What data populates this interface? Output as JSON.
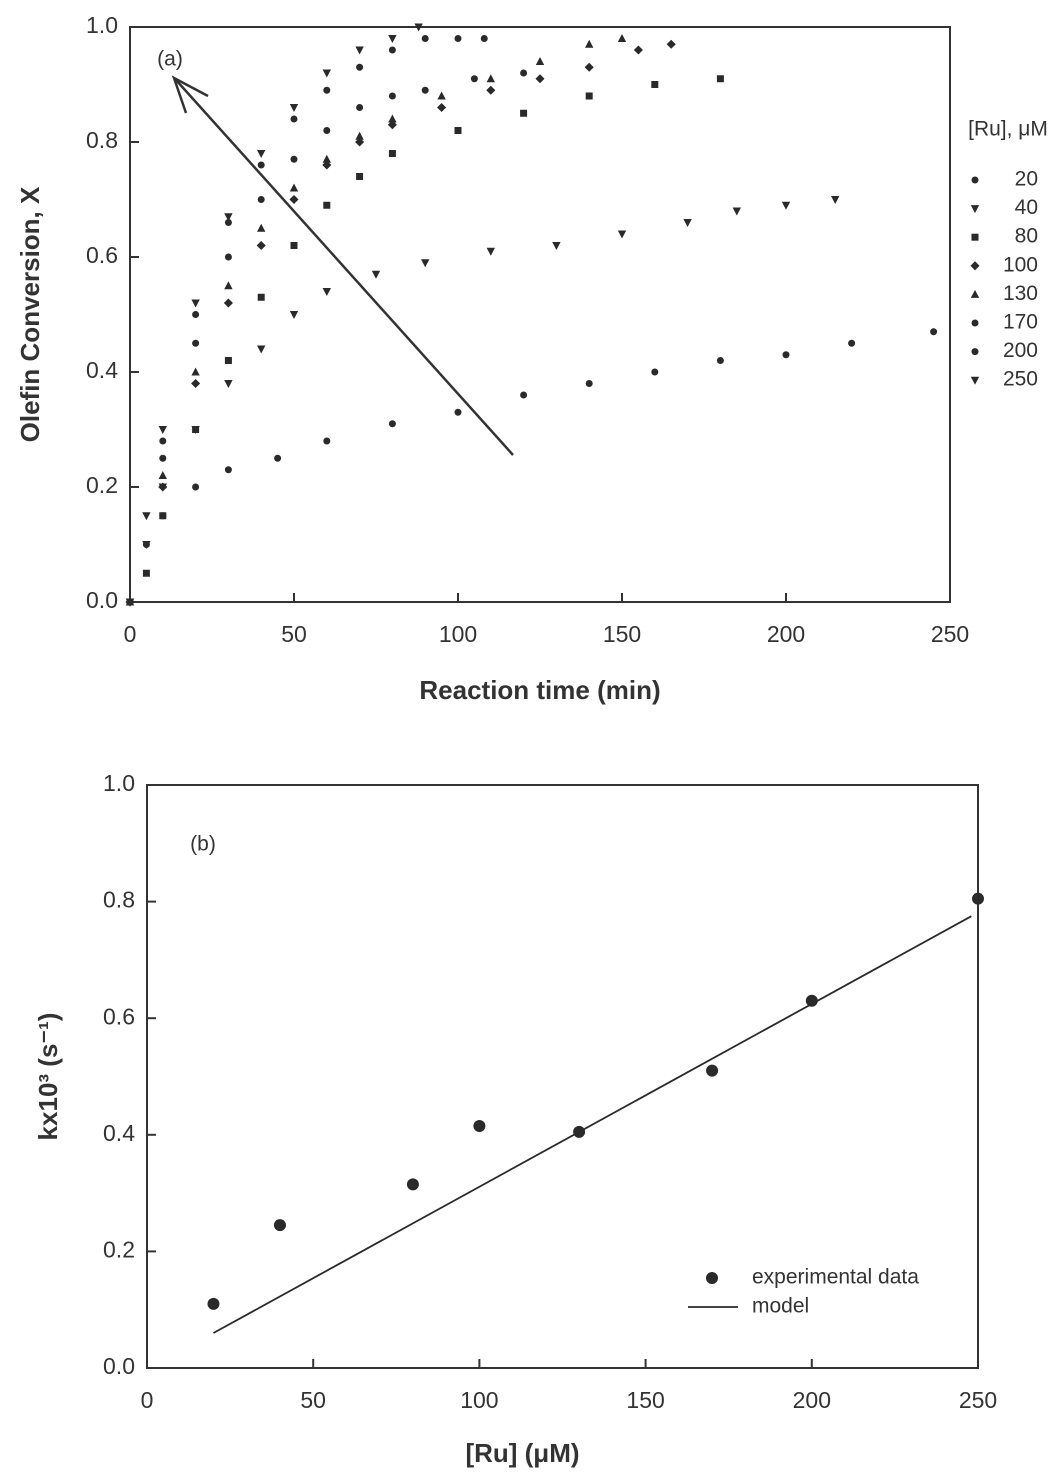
{
  "chart_data": [
    {
      "type": "scatter",
      "annotation": "(a)",
      "x_label": "Reaction time (min)",
      "y_label": "Olefin Conversion, X",
      "legend_title": "[Ru], μM",
      "legend": "right",
      "xlim": [
        0,
        250
      ],
      "ylim": [
        0,
        1.0
      ],
      "xticks": [
        0,
        50,
        100,
        150,
        200,
        250
      ],
      "yticks": [
        {
          "value": 0,
          "label": "0.0"
        },
        {
          "value": 0.2,
          "label": "0.2"
        },
        {
          "value": 0.4,
          "label": "0.4"
        },
        {
          "value": 0.6,
          "label": "0.6"
        },
        {
          "value": 0.8,
          "label": "0.8"
        },
        {
          "value": 1.0,
          "label": "1.0"
        }
      ],
      "series": [
        {
          "name": "20",
          "color": "#2a2a2a",
          "marker": "circle",
          "x": [
            0,
            5,
            10,
            20,
            30,
            45,
            60,
            80,
            100,
            120,
            140,
            160,
            180,
            200,
            220,
            245
          ],
          "values": [
            0,
            0.1,
            0.15,
            0.2,
            0.23,
            0.25,
            0.28,
            0.31,
            0.33,
            0.36,
            0.38,
            0.4,
            0.42,
            0.43,
            0.45,
            0.47
          ]
        },
        {
          "name": "40",
          "color": "#2a2a2a",
          "marker": "triangle-down",
          "x": [
            0,
            5,
            10,
            20,
            30,
            40,
            50,
            60,
            75,
            90,
            110,
            130,
            150,
            170,
            185,
            200,
            215
          ],
          "values": [
            0,
            0.1,
            0.2,
            0.3,
            0.38,
            0.44,
            0.5,
            0.54,
            0.57,
            0.59,
            0.61,
            0.62,
            0.64,
            0.66,
            0.68,
            0.69,
            0.7
          ]
        },
        {
          "name": "80",
          "color": "#2a2a2a",
          "marker": "square",
          "x": [
            0,
            5,
            10,
            20,
            30,
            40,
            50,
            60,
            70,
            80,
            100,
            120,
            140,
            160,
            180
          ],
          "values": [
            0,
            0.05,
            0.15,
            0.3,
            0.42,
            0.53,
            0.62,
            0.69,
            0.74,
            0.78,
            0.82,
            0.85,
            0.88,
            0.9,
            0.91
          ]
        },
        {
          "name": "100",
          "color": "#2a2a2a",
          "marker": "diamond",
          "x": [
            0,
            10,
            20,
            30,
            40,
            50,
            60,
            70,
            80,
            95,
            110,
            125,
            140,
            155,
            165
          ],
          "values": [
            0,
            0.2,
            0.38,
            0.52,
            0.62,
            0.7,
            0.76,
            0.8,
            0.83,
            0.86,
            0.89,
            0.91,
            0.93,
            0.96,
            0.97
          ]
        },
        {
          "name": "130",
          "color": "#2a2a2a",
          "marker": "triangle-up",
          "x": [
            0,
            10,
            20,
            30,
            40,
            50,
            60,
            70,
            80,
            95,
            110,
            125,
            140,
            150
          ],
          "values": [
            0,
            0.22,
            0.4,
            0.55,
            0.65,
            0.72,
            0.77,
            0.81,
            0.84,
            0.88,
            0.91,
            0.94,
            0.97,
            0.98
          ]
        },
        {
          "name": "170",
          "color": "#2a2a2a",
          "marker": "circle",
          "x": [
            0,
            10,
            20,
            30,
            40,
            50,
            60,
            70,
            80,
            90,
            105,
            120
          ],
          "values": [
            0,
            0.25,
            0.45,
            0.6,
            0.7,
            0.77,
            0.82,
            0.86,
            0.88,
            0.89,
            0.91,
            0.92
          ]
        },
        {
          "name": "200",
          "color": "#2a2a2a",
          "marker": "circle",
          "x": [
            0,
            10,
            20,
            30,
            40,
            50,
            60,
            70,
            80,
            90,
            100,
            108
          ],
          "values": [
            0,
            0.28,
            0.5,
            0.66,
            0.76,
            0.84,
            0.89,
            0.93,
            0.96,
            0.98,
            0.98,
            0.98
          ]
        },
        {
          "name": "250",
          "color": "#2a2a2a",
          "marker": "triangle-down",
          "x": [
            0,
            5,
            10,
            20,
            30,
            40,
            50,
            60,
            70,
            80,
            88
          ],
          "values": [
            0,
            0.15,
            0.3,
            0.52,
            0.67,
            0.78,
            0.86,
            0.92,
            0.96,
            0.98,
            1.0
          ]
        }
      ]
    },
    {
      "type": "scatter",
      "annotation": "(b)",
      "x_label": "[Ru] (μM)",
      "y_label": "kx10³ (s⁻¹)",
      "legend": "lower right",
      "xlim": [
        0,
        250
      ],
      "ylim": [
        0,
        1.0
      ],
      "xticks": [
        0,
        50,
        100,
        150,
        200,
        250
      ],
      "yticks": [
        {
          "value": 0,
          "label": "0.0"
        },
        {
          "value": 0.2,
          "label": "0.2"
        },
        {
          "value": 0.4,
          "label": "0.4"
        },
        {
          "value": 0.6,
          "label": "0.6"
        },
        {
          "value": 0.8,
          "label": "0.8"
        },
        {
          "value": 1.0,
          "label": "1.0"
        }
      ],
      "series": [
        {
          "name": "experimental data",
          "color": "#2a2a2a",
          "marker": "circle",
          "x": [
            20,
            40,
            80,
            100,
            130,
            170,
            200,
            250
          ],
          "values": [
            0.11,
            0.245,
            0.315,
            0.415,
            0.405,
            0.51,
            0.63,
            0.805
          ]
        },
        {
          "name": "model",
          "color": "#2a2a2a",
          "marker": "line",
          "x": [
            20,
            248
          ],
          "values": [
            0.06,
            0.775
          ]
        }
      ]
    }
  ]
}
